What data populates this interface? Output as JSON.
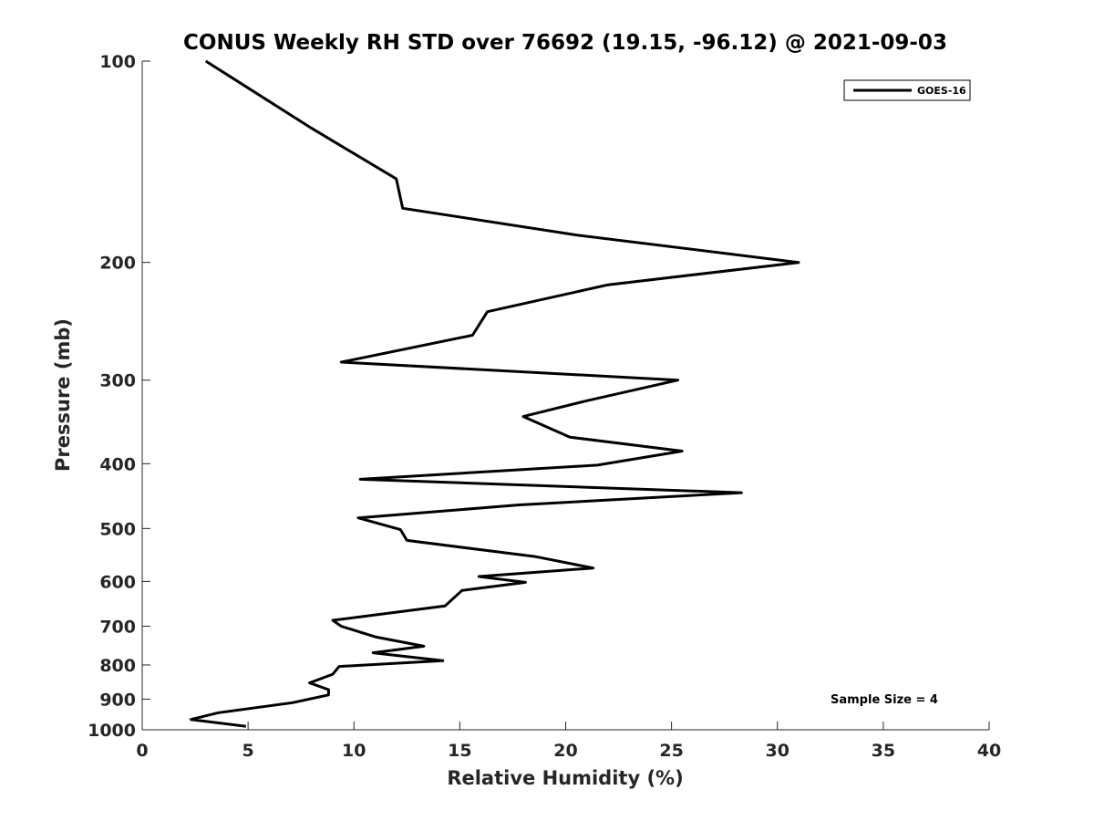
{
  "chart_data": {
    "type": "line",
    "title": "CONUS Weekly RH STD over 76692 (19.15, -96.12) @ 2021-09-03",
    "xlabel": "Relative Humidity (%)",
    "ylabel": "Pressure (mb)",
    "xlim": [
      0,
      40
    ],
    "ylim": [
      1000,
      100
    ],
    "yscale": "log",
    "y_reversed": true,
    "xticks": [
      0,
      5,
      10,
      15,
      20,
      25,
      30,
      35,
      40
    ],
    "yticks": [
      100,
      200,
      300,
      400,
      500,
      600,
      700,
      800,
      900,
      1000
    ],
    "grid": false,
    "legend_position": "top-right",
    "annotation": "Sample Size = 4",
    "series": [
      {
        "name": "GOES-16",
        "color": "#000000",
        "x": [
          3.0,
          8.0,
          12.0,
          12.3,
          20.5,
          31.0,
          22.0,
          16.3,
          15.6,
          9.4,
          25.3,
          21.0,
          18.0,
          20.2,
          25.5,
          21.5,
          10.3,
          28.3,
          17.8,
          10.2,
          12.2,
          12.5,
          18.6,
          21.3,
          15.9,
          18.1,
          15.1,
          14.3,
          9.0,
          9.4,
          11.0,
          13.3,
          10.9,
          14.2,
          9.3,
          9.0,
          7.9,
          8.8,
          8.8,
          7.1,
          3.6,
          2.3,
          4.9
        ],
        "y": [
          100,
          126,
          150,
          166,
          182,
          200,
          216,
          237,
          257,
          282,
          300,
          322,
          340,
          365,
          383,
          402,
          422,
          442,
          461,
          482,
          502,
          521,
          551,
          573,
          590,
          602,
          619,
          653,
          686,
          700,
          726,
          750,
          767,
          788,
          804,
          826,
          851,
          871,
          887,
          911,
          943,
          965,
          988
        ]
      }
    ]
  }
}
